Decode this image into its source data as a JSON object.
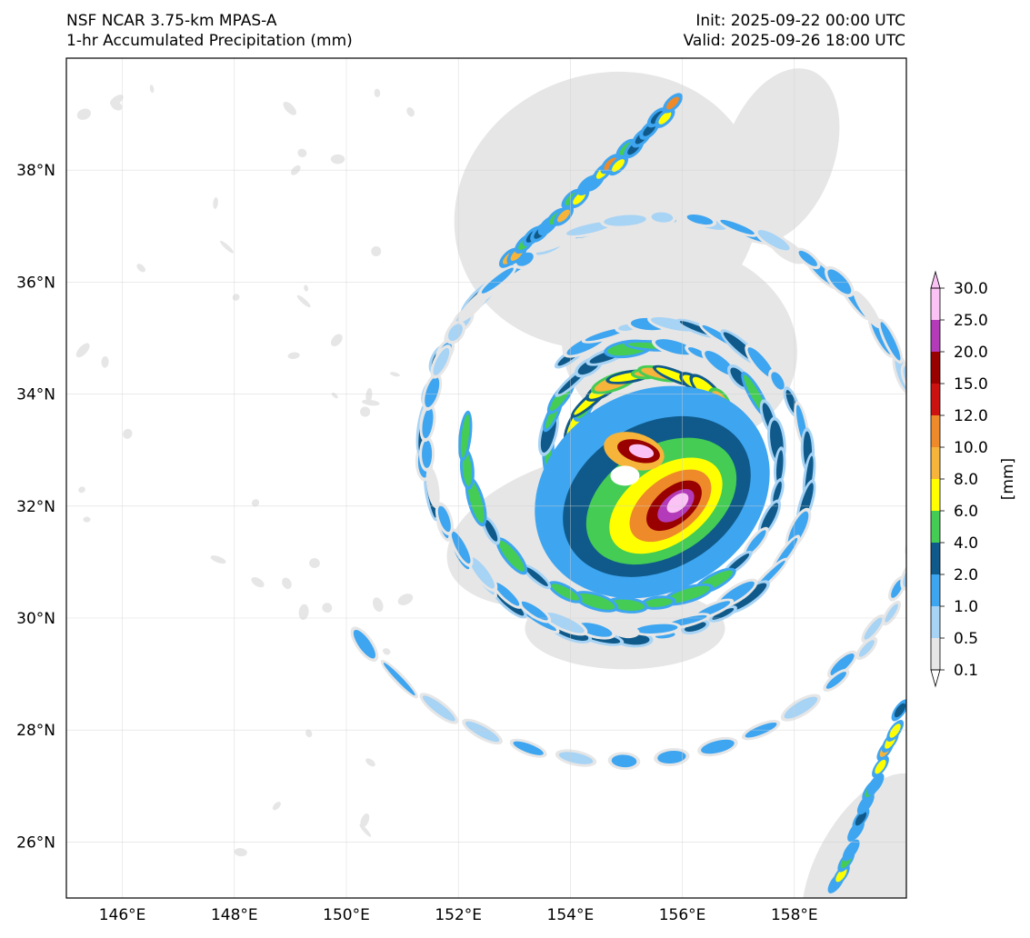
{
  "header": {
    "model": "NSF NCAR 3.75-km MPAS-A",
    "field": "1-hr Accumulated Precipitation (mm)",
    "init": "Init: 2025-09-22 00:00 UTC",
    "valid": "Valid: 2025-09-26 18:00 UTC"
  },
  "map": {
    "lon_range": [
      145,
      160
    ],
    "lat_range": [
      25,
      40
    ],
    "lon_ticks": [
      146,
      148,
      150,
      152,
      154,
      156,
      158
    ],
    "lon_tick_labels": [
      "146°E",
      "148°E",
      "150°E",
      "152°E",
      "154°E",
      "156°E",
      "158°E"
    ],
    "lat_ticks": [
      26,
      28,
      30,
      32,
      34,
      36,
      38
    ],
    "lat_tick_labels": [
      "26°N",
      "28°N",
      "30°N",
      "32°N",
      "34°N",
      "36°N",
      "38°N"
    ],
    "gridlines": true,
    "storm_center": {
      "lon": 155.3,
      "lat": 32.9
    }
  },
  "colorbar": {
    "label": "[mm]",
    "levels": [
      "0.1",
      "0.5",
      "1.0",
      "2.0",
      "4.0",
      "6.0",
      "8.0",
      "10.0",
      "12.0",
      "15.0",
      "20.0",
      "25.0",
      "30.0"
    ],
    "colors": [
      "#e6e6e6",
      "#a7d3f5",
      "#3ea5f0",
      "#0f5a8a",
      "#44cc55",
      "#ffff00",
      "#f6b43a",
      "#ee8a2a",
      "#cc1111",
      "#990000",
      "#b33ab8",
      "#fbc2f5"
    ],
    "extend": "both"
  }
}
